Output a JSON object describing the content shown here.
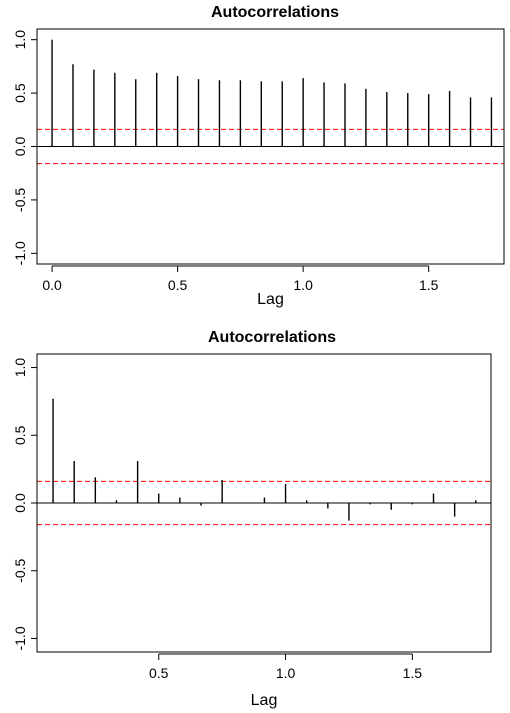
{
  "chart_data": [
    {
      "type": "bar",
      "subtype": "correlogram",
      "title": "Autocorrelations",
      "xlabel": "Lag",
      "ylabel": "",
      "xlim": [
        -0.06,
        1.8
      ],
      "ylim": [
        -1.1,
        1.1
      ],
      "xticks": [
        0.0,
        0.5,
        1.0,
        1.5
      ],
      "xtick_labels": [
        "0.0",
        "0.5",
        "1.0",
        "1.5"
      ],
      "yticks": [
        -1.0,
        -0.5,
        0.0,
        0.5,
        1.0
      ],
      "ytick_labels": [
        "-1.0",
        "-0.5",
        "0.0",
        "0.5",
        "1.0"
      ],
      "confidence_bounds": [
        0.16,
        -0.16
      ],
      "lags": [
        0.0,
        0.0833,
        0.1667,
        0.25,
        0.3333,
        0.4167,
        0.5,
        0.5833,
        0.6667,
        0.75,
        0.8333,
        0.9167,
        1.0,
        1.0833,
        1.1667,
        1.25,
        1.3333,
        1.4167,
        1.5,
        1.5833,
        1.6667,
        1.75
      ],
      "values": [
        1.0,
        0.77,
        0.72,
        0.69,
        0.63,
        0.69,
        0.66,
        0.63,
        0.62,
        0.62,
        0.61,
        0.61,
        0.64,
        0.6,
        0.59,
        0.54,
        0.51,
        0.5,
        0.49,
        0.52,
        0.46,
        0.46
      ],
      "colors": {
        "bars": "#000000",
        "bounds": "#ff0000",
        "zero_line": "#000000"
      }
    },
    {
      "type": "bar",
      "subtype": "correlogram",
      "title": "Autocorrelations",
      "xlabel": "Lag",
      "ylabel": "",
      "xlim": [
        0.02,
        1.81
      ],
      "ylim": [
        -1.1,
        1.1
      ],
      "xticks": [
        0.5,
        1.0,
        1.5
      ],
      "xtick_labels": [
        "0.5",
        "1.0",
        "1.5"
      ],
      "yticks": [
        -1.0,
        -0.5,
        0.0,
        0.5,
        1.0
      ],
      "ytick_labels": [
        "-1.0",
        "-0.5",
        "0.0",
        "0.5",
        "1.0"
      ],
      "confidence_bounds": [
        0.16,
        -0.16
      ],
      "lags": [
        0.0833,
        0.1667,
        0.25,
        0.3333,
        0.4167,
        0.5,
        0.5833,
        0.6667,
        0.75,
        0.8333,
        0.9167,
        1.0,
        1.0833,
        1.1667,
        1.25,
        1.3333,
        1.4167,
        1.5,
        1.5833,
        1.6667,
        1.75
      ],
      "values": [
        0.77,
        0.31,
        0.19,
        0.02,
        0.31,
        0.07,
        0.04,
        -0.02,
        0.17,
        0.0,
        0.04,
        0.14,
        0.02,
        -0.04,
        -0.13,
        -0.01,
        -0.05,
        -0.01,
        0.07,
        -0.1,
        0.02
      ],
      "colors": {
        "bars": "#000000",
        "bounds": "#ff0000",
        "zero_line": "#000000"
      }
    }
  ]
}
